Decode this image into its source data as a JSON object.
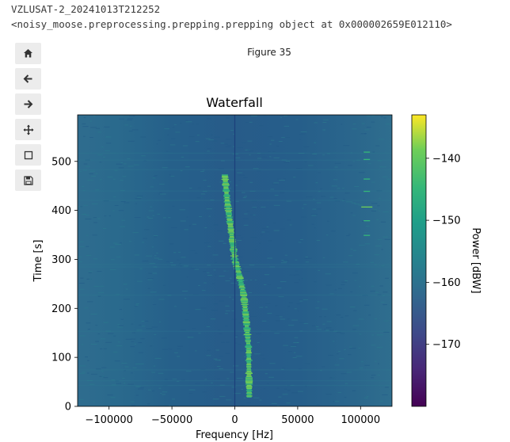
{
  "output": {
    "line1": "VZLUSAT-2_20241013T212252",
    "line2": "<noisy_moose.preprocessing.prepping.prepping object at 0x000002659E012110>"
  },
  "toolbar": {
    "buttons": [
      {
        "name": "home",
        "icon": "home-icon"
      },
      {
        "name": "back",
        "icon": "arrow-left-icon"
      },
      {
        "name": "forward",
        "icon": "arrow-right-icon"
      },
      {
        "name": "pan",
        "icon": "move-icon"
      },
      {
        "name": "zoom",
        "icon": "zoom-rect-icon"
      },
      {
        "name": "save",
        "icon": "save-icon"
      }
    ]
  },
  "figure": {
    "label": "Figure 35"
  },
  "chart_data": {
    "type": "heatmap",
    "title": "Waterfall",
    "xlabel": "Frequency [Hz]",
    "ylabel": "Time [s]",
    "xlim": [
      -125000,
      125000
    ],
    "ylim": [
      0,
      595
    ],
    "xticks": [
      -100000,
      -50000,
      0,
      50000,
      100000
    ],
    "xtick_labels": [
      "−100000",
      "−50000",
      "0",
      "50000",
      "100000"
    ],
    "yticks": [
      0,
      100,
      200,
      300,
      400,
      500
    ],
    "ytick_labels": [
      "0",
      "100",
      "200",
      "300",
      "400",
      "500"
    ],
    "colorbar": {
      "label": "Power [dBW]",
      "range": [
        -180,
        -133
      ],
      "ticks": [
        -140,
        -150,
        -160,
        -170
      ],
      "tick_labels": [
        "−140",
        "−150",
        "−160",
        "−170"
      ],
      "colormap": "viridis"
    },
    "background_level_dbw": -163,
    "dc_line_hz": 0,
    "signal_trace": {
      "points": [
        {
          "t": 475,
          "f": -8000
        },
        {
          "t": 420,
          "f": -6000
        },
        {
          "t": 360,
          "f": -3000
        },
        {
          "t": 300,
          "f": 0
        },
        {
          "t": 275,
          "f": 3000
        },
        {
          "t": 230,
          "f": 7000
        },
        {
          "t": 180,
          "f": 9000
        },
        {
          "t": 120,
          "f": 11000
        },
        {
          "t": 20,
          "f": 11500
        }
      ],
      "level_dbw": -150
    },
    "side_signal": {
      "f": 105000,
      "t_range": [
        350,
        520
      ],
      "level_dbw": -148
    }
  }
}
